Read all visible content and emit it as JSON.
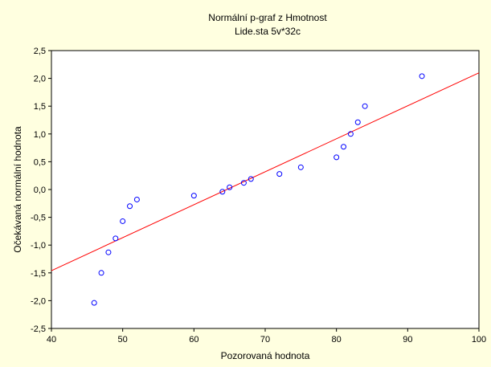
{
  "chart_data": {
    "type": "scatter",
    "title": "Normální p-graf z Hmotnost",
    "subtitle": "Lide.sta 5v*32c",
    "xlabel": "Pozorovaná hodnota",
    "ylabel": "Očekávaná normální hodnota",
    "xlim": [
      40,
      100
    ],
    "ylim": [
      -2.5,
      2.5
    ],
    "x_ticks": [
      40,
      50,
      60,
      70,
      80,
      90,
      100
    ],
    "y_ticks": [
      2.5,
      2.0,
      1.5,
      1.0,
      0.5,
      0.0,
      -0.5,
      -1.0,
      -1.5,
      -2.0,
      -2.5
    ],
    "x_tick_labels": [
      "40",
      "50",
      "60",
      "70",
      "80",
      "90",
      "100"
    ],
    "y_tick_labels": [
      "2,5",
      "2,0",
      "1,5",
      "1,0",
      "0,5",
      "0,0",
      "-0,5",
      "-1,0",
      "-1,5",
      "-2,0",
      "-2,5"
    ],
    "grid": false,
    "points": [
      {
        "x": 46,
        "y": -2.04
      },
      {
        "x": 47,
        "y": -1.5
      },
      {
        "x": 48,
        "y": -1.13
      },
      {
        "x": 49,
        "y": -0.88
      },
      {
        "x": 50,
        "y": -0.57
      },
      {
        "x": 51,
        "y": -0.3
      },
      {
        "x": 52,
        "y": -0.18
      },
      {
        "x": 60,
        "y": -0.11
      },
      {
        "x": 64,
        "y": -0.04
      },
      {
        "x": 65,
        "y": 0.04
      },
      {
        "x": 67,
        "y": 0.12
      },
      {
        "x": 68,
        "y": 0.19
      },
      {
        "x": 72,
        "y": 0.28
      },
      {
        "x": 75,
        "y": 0.4
      },
      {
        "x": 80,
        "y": 0.58
      },
      {
        "x": 81,
        "y": 0.77
      },
      {
        "x": 82,
        "y": 1.0
      },
      {
        "x": 83,
        "y": 1.21
      },
      {
        "x": 84,
        "y": 1.5
      },
      {
        "x": 92,
        "y": 2.04
      }
    ],
    "fit_line": {
      "x1": 40,
      "y1": -1.46,
      "x2": 100,
      "y2": 2.1
    },
    "colors": {
      "background": "#ffffe0",
      "plot_background": "#ffffff",
      "points": "#0000ff",
      "fit_line": "#ff0000"
    }
  }
}
